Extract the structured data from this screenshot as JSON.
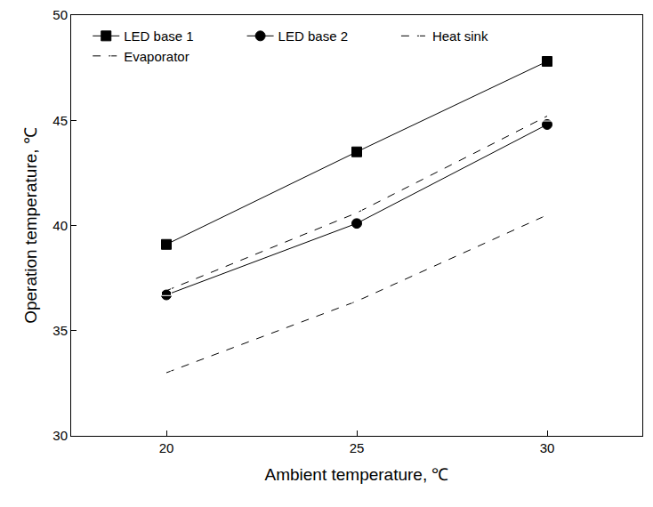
{
  "chart_data": {
    "type": "line",
    "x_label": "Ambient temperature, ℃",
    "y_label": "Operation temperature, ℃",
    "x": [
      20,
      25,
      30
    ],
    "xlim": [
      17.5,
      32.5
    ],
    "xticks": [
      20,
      25,
      30
    ],
    "ylim": [
      30,
      50
    ],
    "yticks": [
      30,
      35,
      40,
      45,
      50
    ],
    "grid": false,
    "legend": "upper left",
    "series": [
      {
        "name": "LED base 1",
        "color": "#000000",
        "marker": "square",
        "line_style": "solid",
        "values": [
          39.1,
          43.5,
          47.8
        ]
      },
      {
        "name": "LED base 2",
        "color": "#000000",
        "marker": "circle",
        "line_style": "solid",
        "values": [
          36.7,
          40.1,
          44.8
        ]
      },
      {
        "name": "Heat sink",
        "color": "#000000",
        "marker": "square-open",
        "line_style": "dash",
        "values": [
          36.9,
          40.6,
          45.2
        ]
      },
      {
        "name": "Evaporator",
        "color": "#000000",
        "marker": "circle-open",
        "line_style": "dash",
        "values": [
          33.0,
          36.4,
          40.5
        ]
      }
    ]
  }
}
